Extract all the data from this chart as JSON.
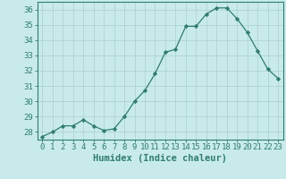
{
  "x": [
    0,
    1,
    2,
    3,
    4,
    5,
    6,
    7,
    8,
    9,
    10,
    11,
    12,
    13,
    14,
    15,
    16,
    17,
    18,
    19,
    20,
    21,
    22,
    23
  ],
  "y": [
    27.7,
    28.0,
    28.4,
    28.4,
    28.8,
    28.4,
    28.1,
    28.2,
    29.0,
    30.0,
    30.7,
    31.8,
    33.2,
    33.4,
    34.9,
    34.9,
    35.7,
    36.1,
    36.1,
    35.4,
    34.5,
    33.3,
    32.1,
    31.5
  ],
  "line_color": "#2e7d6e",
  "marker": "D",
  "marker_size": 2.2,
  "bg_color": "#c8eaea",
  "grid_color": "#aacece",
  "xlabel": "Humidex (Indice chaleur)",
  "xlim": [
    -0.5,
    23.5
  ],
  "ylim": [
    27.5,
    36.5
  ],
  "yticks": [
    28,
    29,
    30,
    31,
    32,
    33,
    34,
    35,
    36
  ],
  "xticks": [
    0,
    1,
    2,
    3,
    4,
    5,
    6,
    7,
    8,
    9,
    10,
    11,
    12,
    13,
    14,
    15,
    16,
    17,
    18,
    19,
    20,
    21,
    22,
    23
  ],
  "tick_label_fontsize": 6.5,
  "xlabel_fontsize": 7.5,
  "spine_color": "#2e7d6e",
  "tick_color": "#2e7d6e"
}
